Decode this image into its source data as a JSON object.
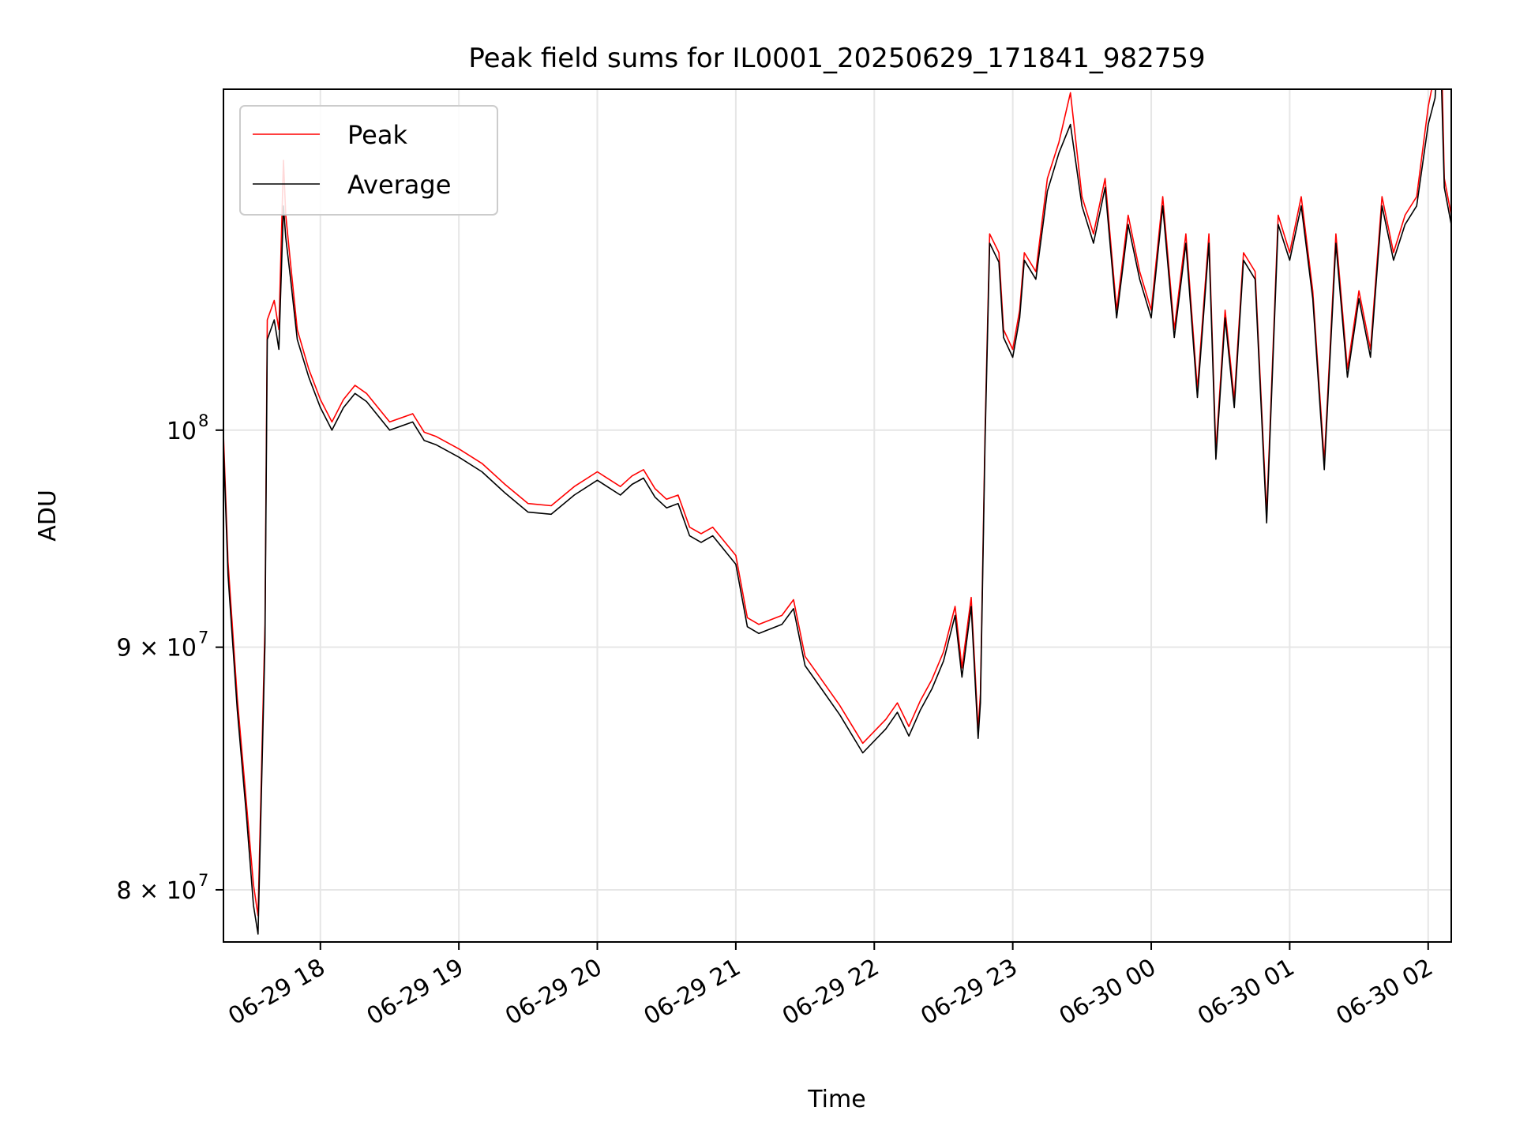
{
  "chart_data": {
    "type": "line",
    "title": "Peak field sums for IL0001_20250629_171841_982759",
    "xlabel": "Time",
    "ylabel": "ADU",
    "yscale": "log",
    "ylim": [
      78000000,
      118000000
    ],
    "xlim": [
      "2025-06-29 17:18",
      "2025-06-30 02:10"
    ],
    "grid": true,
    "legend_position": "upper-left",
    "x_ticks": [
      {
        "t": "2025-06-29 18:00",
        "label": "06-29 18"
      },
      {
        "t": "2025-06-29 19:00",
        "label": "06-29 19"
      },
      {
        "t": "2025-06-29 20:00",
        "label": "06-29 20"
      },
      {
        "t": "2025-06-29 21:00",
        "label": "06-29 21"
      },
      {
        "t": "2025-06-29 22:00",
        "label": "06-29 22"
      },
      {
        "t": "2025-06-29 23:00",
        "label": "06-29 23"
      },
      {
        "t": "2025-06-30 00:00",
        "label": "06-30 00"
      },
      {
        "t": "2025-06-30 01:00",
        "label": "06-30 01"
      },
      {
        "t": "2025-06-30 02:00",
        "label": "06-30 02"
      }
    ],
    "y_ticks": [
      {
        "value": 80000000,
        "label": "8 × 10",
        "exp": "7"
      },
      {
        "value": 90000000,
        "label": "9 × 10",
        "exp": "7"
      },
      {
        "value": 100000000,
        "label": "10",
        "exp": "8"
      }
    ],
    "series": [
      {
        "name": "Peak",
        "color": "#ff0000",
        "x": [
          "2025-06-29 17:18",
          "2025-06-29 17:20",
          "2025-06-29 17:24",
          "2025-06-29 17:28",
          "2025-06-29 17:31",
          "2025-06-29 17:33",
          "2025-06-29 17:36",
          "2025-06-29 17:37",
          "2025-06-29 17:40",
          "2025-06-29 17:42",
          "2025-06-29 17:44",
          "2025-06-29 17:45",
          "2025-06-29 17:47",
          "2025-06-29 17:50",
          "2025-06-29 17:55",
          "2025-06-29 18:00",
          "2025-06-29 18:05",
          "2025-06-29 18:10",
          "2025-06-29 18:15",
          "2025-06-29 18:20",
          "2025-06-29 18:30",
          "2025-06-29 18:40",
          "2025-06-29 18:45",
          "2025-06-29 18:50",
          "2025-06-29 19:00",
          "2025-06-29 19:10",
          "2025-06-29 19:20",
          "2025-06-29 19:30",
          "2025-06-29 19:40",
          "2025-06-29 19:50",
          "2025-06-29 20:00",
          "2025-06-29 20:10",
          "2025-06-29 20:15",
          "2025-06-29 20:20",
          "2025-06-29 20:25",
          "2025-06-29 20:30",
          "2025-06-29 20:35",
          "2025-06-29 20:40",
          "2025-06-29 20:45",
          "2025-06-29 20:50",
          "2025-06-29 21:00",
          "2025-06-29 21:05",
          "2025-06-29 21:10",
          "2025-06-29 21:20",
          "2025-06-29 21:25",
          "2025-06-29 21:30",
          "2025-06-29 21:35",
          "2025-06-29 21:45",
          "2025-06-29 21:55",
          "2025-06-29 22:05",
          "2025-06-29 22:10",
          "2025-06-29 22:15",
          "2025-06-29 22:20",
          "2025-06-29 22:25",
          "2025-06-29 22:30",
          "2025-06-29 22:35",
          "2025-06-29 22:38",
          "2025-06-29 22:42",
          "2025-06-29 22:45",
          "2025-06-29 22:46",
          "2025-06-29 22:48",
          "2025-06-29 22:50",
          "2025-06-29 22:54",
          "2025-06-29 22:56",
          "2025-06-29 23:00",
          "2025-06-29 23:03",
          "2025-06-29 23:05",
          "2025-06-29 23:10",
          "2025-06-29 23:15",
          "2025-06-29 23:20",
          "2025-06-29 23:25",
          "2025-06-29 23:30",
          "2025-06-29 23:35",
          "2025-06-29 23:40",
          "2025-06-29 23:45",
          "2025-06-29 23:50",
          "2025-06-29 23:55",
          "2025-06-30 00:00",
          "2025-06-30 00:05",
          "2025-06-30 00:10",
          "2025-06-30 00:15",
          "2025-06-30 00:20",
          "2025-06-30 00:25",
          "2025-06-30 00:28",
          "2025-06-30 00:32",
          "2025-06-30 00:36",
          "2025-06-30 00:40",
          "2025-06-30 00:45",
          "2025-06-30 00:50",
          "2025-06-30 00:55",
          "2025-06-30 01:00",
          "2025-06-30 01:05",
          "2025-06-30 01:10",
          "2025-06-30 01:15",
          "2025-06-30 01:20",
          "2025-06-30 01:25",
          "2025-06-30 01:30",
          "2025-06-30 01:35",
          "2025-06-30 01:40",
          "2025-06-30 01:45",
          "2025-06-30 01:50",
          "2025-06-30 01:55",
          "2025-06-30 02:00",
          "2025-06-30 02:03",
          "2025-06-30 02:05",
          "2025-06-30 02:07",
          "2025-06-30 02:10"
        ],
        "values": [
          99800000,
          93800000,
          87800000,
          83400000,
          80200000,
          79000000,
          91000000,
          105500000,
          106500000,
          105000000,
          114000000,
          111000000,
          108500000,
          105000000,
          103000000,
          101500000,
          100400000,
          101500000,
          102200000,
          101800000,
          100400000,
          100800000,
          99900000,
          99700000,
          99100000,
          98400000,
          97400000,
          96500000,
          96400000,
          97300000,
          98000000,
          97300000,
          97800000,
          98100000,
          97200000,
          96700000,
          96900000,
          95400000,
          95100000,
          95400000,
          94100000,
          91300000,
          91000000,
          91400000,
          92100000,
          89600000,
          88900000,
          87500000,
          85900000,
          86900000,
          87600000,
          86600000,
          87700000,
          88600000,
          89800000,
          91800000,
          89100000,
          92200000,
          86500000,
          88000000,
          100000000,
          110000000,
          109000000,
          105000000,
          104000000,
          106000000,
          109000000,
          108000000,
          113000000,
          115000000,
          117800000,
          112000000,
          110000000,
          113000000,
          106000000,
          111000000,
          108000000,
          106000000,
          112000000,
          105000000,
          110000000,
          102000000,
          110000000,
          99000000,
          106000000,
          101500000,
          109000000,
          108000000,
          96000000,
          111000000,
          109000000,
          112000000,
          107000000,
          98500000,
          110000000,
          103000000,
          107000000,
          104000000,
          112000000,
          109000000,
          111000000,
          112000000,
          117000000,
          119000000,
          125000000,
          113000000,
          111000000
        ]
      },
      {
        "name": "Average",
        "color": "#000000",
        "x": [
          "2025-06-29 17:18",
          "2025-06-29 17:20",
          "2025-06-29 17:24",
          "2025-06-29 17:28",
          "2025-06-29 17:31",
          "2025-06-29 17:33",
          "2025-06-29 17:36",
          "2025-06-29 17:37",
          "2025-06-29 17:40",
          "2025-06-29 17:42",
          "2025-06-29 17:44",
          "2025-06-29 17:45",
          "2025-06-29 17:47",
          "2025-06-29 17:50",
          "2025-06-29 17:55",
          "2025-06-29 18:00",
          "2025-06-29 18:05",
          "2025-06-29 18:10",
          "2025-06-29 18:15",
          "2025-06-29 18:20",
          "2025-06-29 18:30",
          "2025-06-29 18:40",
          "2025-06-29 18:45",
          "2025-06-29 18:50",
          "2025-06-29 19:00",
          "2025-06-29 19:10",
          "2025-06-29 19:20",
          "2025-06-29 19:30",
          "2025-06-29 19:40",
          "2025-06-29 19:50",
          "2025-06-29 20:00",
          "2025-06-29 20:10",
          "2025-06-29 20:15",
          "2025-06-29 20:20",
          "2025-06-29 20:25",
          "2025-06-29 20:30",
          "2025-06-29 20:35",
          "2025-06-29 20:40",
          "2025-06-29 20:45",
          "2025-06-29 20:50",
          "2025-06-29 21:00",
          "2025-06-29 21:05",
          "2025-06-29 21:10",
          "2025-06-29 21:20",
          "2025-06-29 21:25",
          "2025-06-29 21:30",
          "2025-06-29 21:35",
          "2025-06-29 21:45",
          "2025-06-29 21:55",
          "2025-06-29 22:05",
          "2025-06-29 22:10",
          "2025-06-29 22:15",
          "2025-06-29 22:20",
          "2025-06-29 22:25",
          "2025-06-29 22:30",
          "2025-06-29 22:35",
          "2025-06-29 22:38",
          "2025-06-29 22:42",
          "2025-06-29 22:45",
          "2025-06-29 22:46",
          "2025-06-29 22:48",
          "2025-06-29 22:50",
          "2025-06-29 22:54",
          "2025-06-29 22:56",
          "2025-06-29 23:00",
          "2025-06-29 23:03",
          "2025-06-29 23:05",
          "2025-06-29 23:10",
          "2025-06-29 23:15",
          "2025-06-29 23:20",
          "2025-06-29 23:25",
          "2025-06-29 23:30",
          "2025-06-29 23:35",
          "2025-06-29 23:40",
          "2025-06-29 23:45",
          "2025-06-29 23:50",
          "2025-06-29 23:55",
          "2025-06-30 00:00",
          "2025-06-30 00:05",
          "2025-06-30 00:10",
          "2025-06-30 00:15",
          "2025-06-30 00:20",
          "2025-06-30 00:25",
          "2025-06-30 00:28",
          "2025-06-30 00:32",
          "2025-06-30 00:36",
          "2025-06-30 00:40",
          "2025-06-30 00:45",
          "2025-06-30 00:50",
          "2025-06-30 00:55",
          "2025-06-30 01:00",
          "2025-06-30 01:05",
          "2025-06-30 01:10",
          "2025-06-30 01:15",
          "2025-06-30 01:20",
          "2025-06-30 01:25",
          "2025-06-30 01:30",
          "2025-06-30 01:35",
          "2025-06-30 01:40",
          "2025-06-30 01:45",
          "2025-06-30 01:50",
          "2025-06-30 01:55",
          "2025-06-30 02:00",
          "2025-06-30 02:03",
          "2025-06-30 02:05",
          "2025-06-30 02:07",
          "2025-06-30 02:10"
        ],
        "values": [
          99300000,
          93200000,
          87300000,
          82900000,
          79400000,
          78300000,
          90200000,
          104500000,
          105500000,
          104000000,
          111500000,
          109800000,
          107700000,
          104500000,
          102600000,
          101100000,
          100000000,
          101100000,
          101800000,
          101400000,
          100000000,
          100400000,
          99500000,
          99300000,
          98700000,
          98000000,
          97000000,
          96100000,
          96000000,
          96900000,
          97600000,
          96900000,
          97400000,
          97700000,
          96800000,
          96300000,
          96500000,
          95000000,
          94700000,
          95000000,
          93700000,
          90900000,
          90600000,
          91000000,
          91700000,
          89200000,
          88500000,
          87100000,
          85500000,
          86500000,
          87200000,
          86200000,
          87300000,
          88200000,
          89400000,
          91400000,
          88700000,
          91800000,
          86100000,
          87600000,
          99500000,
          109500000,
          108500000,
          104600000,
          103600000,
          105600000,
          108600000,
          107600000,
          112300000,
          114400000,
          116000000,
          111500000,
          109500000,
          112500000,
          105600000,
          110500000,
          107600000,
          105600000,
          111500000,
          104600000,
          109500000,
          101600000,
          109500000,
          98600000,
          105600000,
          101100000,
          108600000,
          107600000,
          95600000,
          110500000,
          108600000,
          111500000,
          106600000,
          98100000,
          109500000,
          102600000,
          106600000,
          103600000,
          111500000,
          108600000,
          110500000,
          111500000,
          116000000,
          117500000,
          122000000,
          112500000,
          110500000
        ]
      }
    ]
  }
}
